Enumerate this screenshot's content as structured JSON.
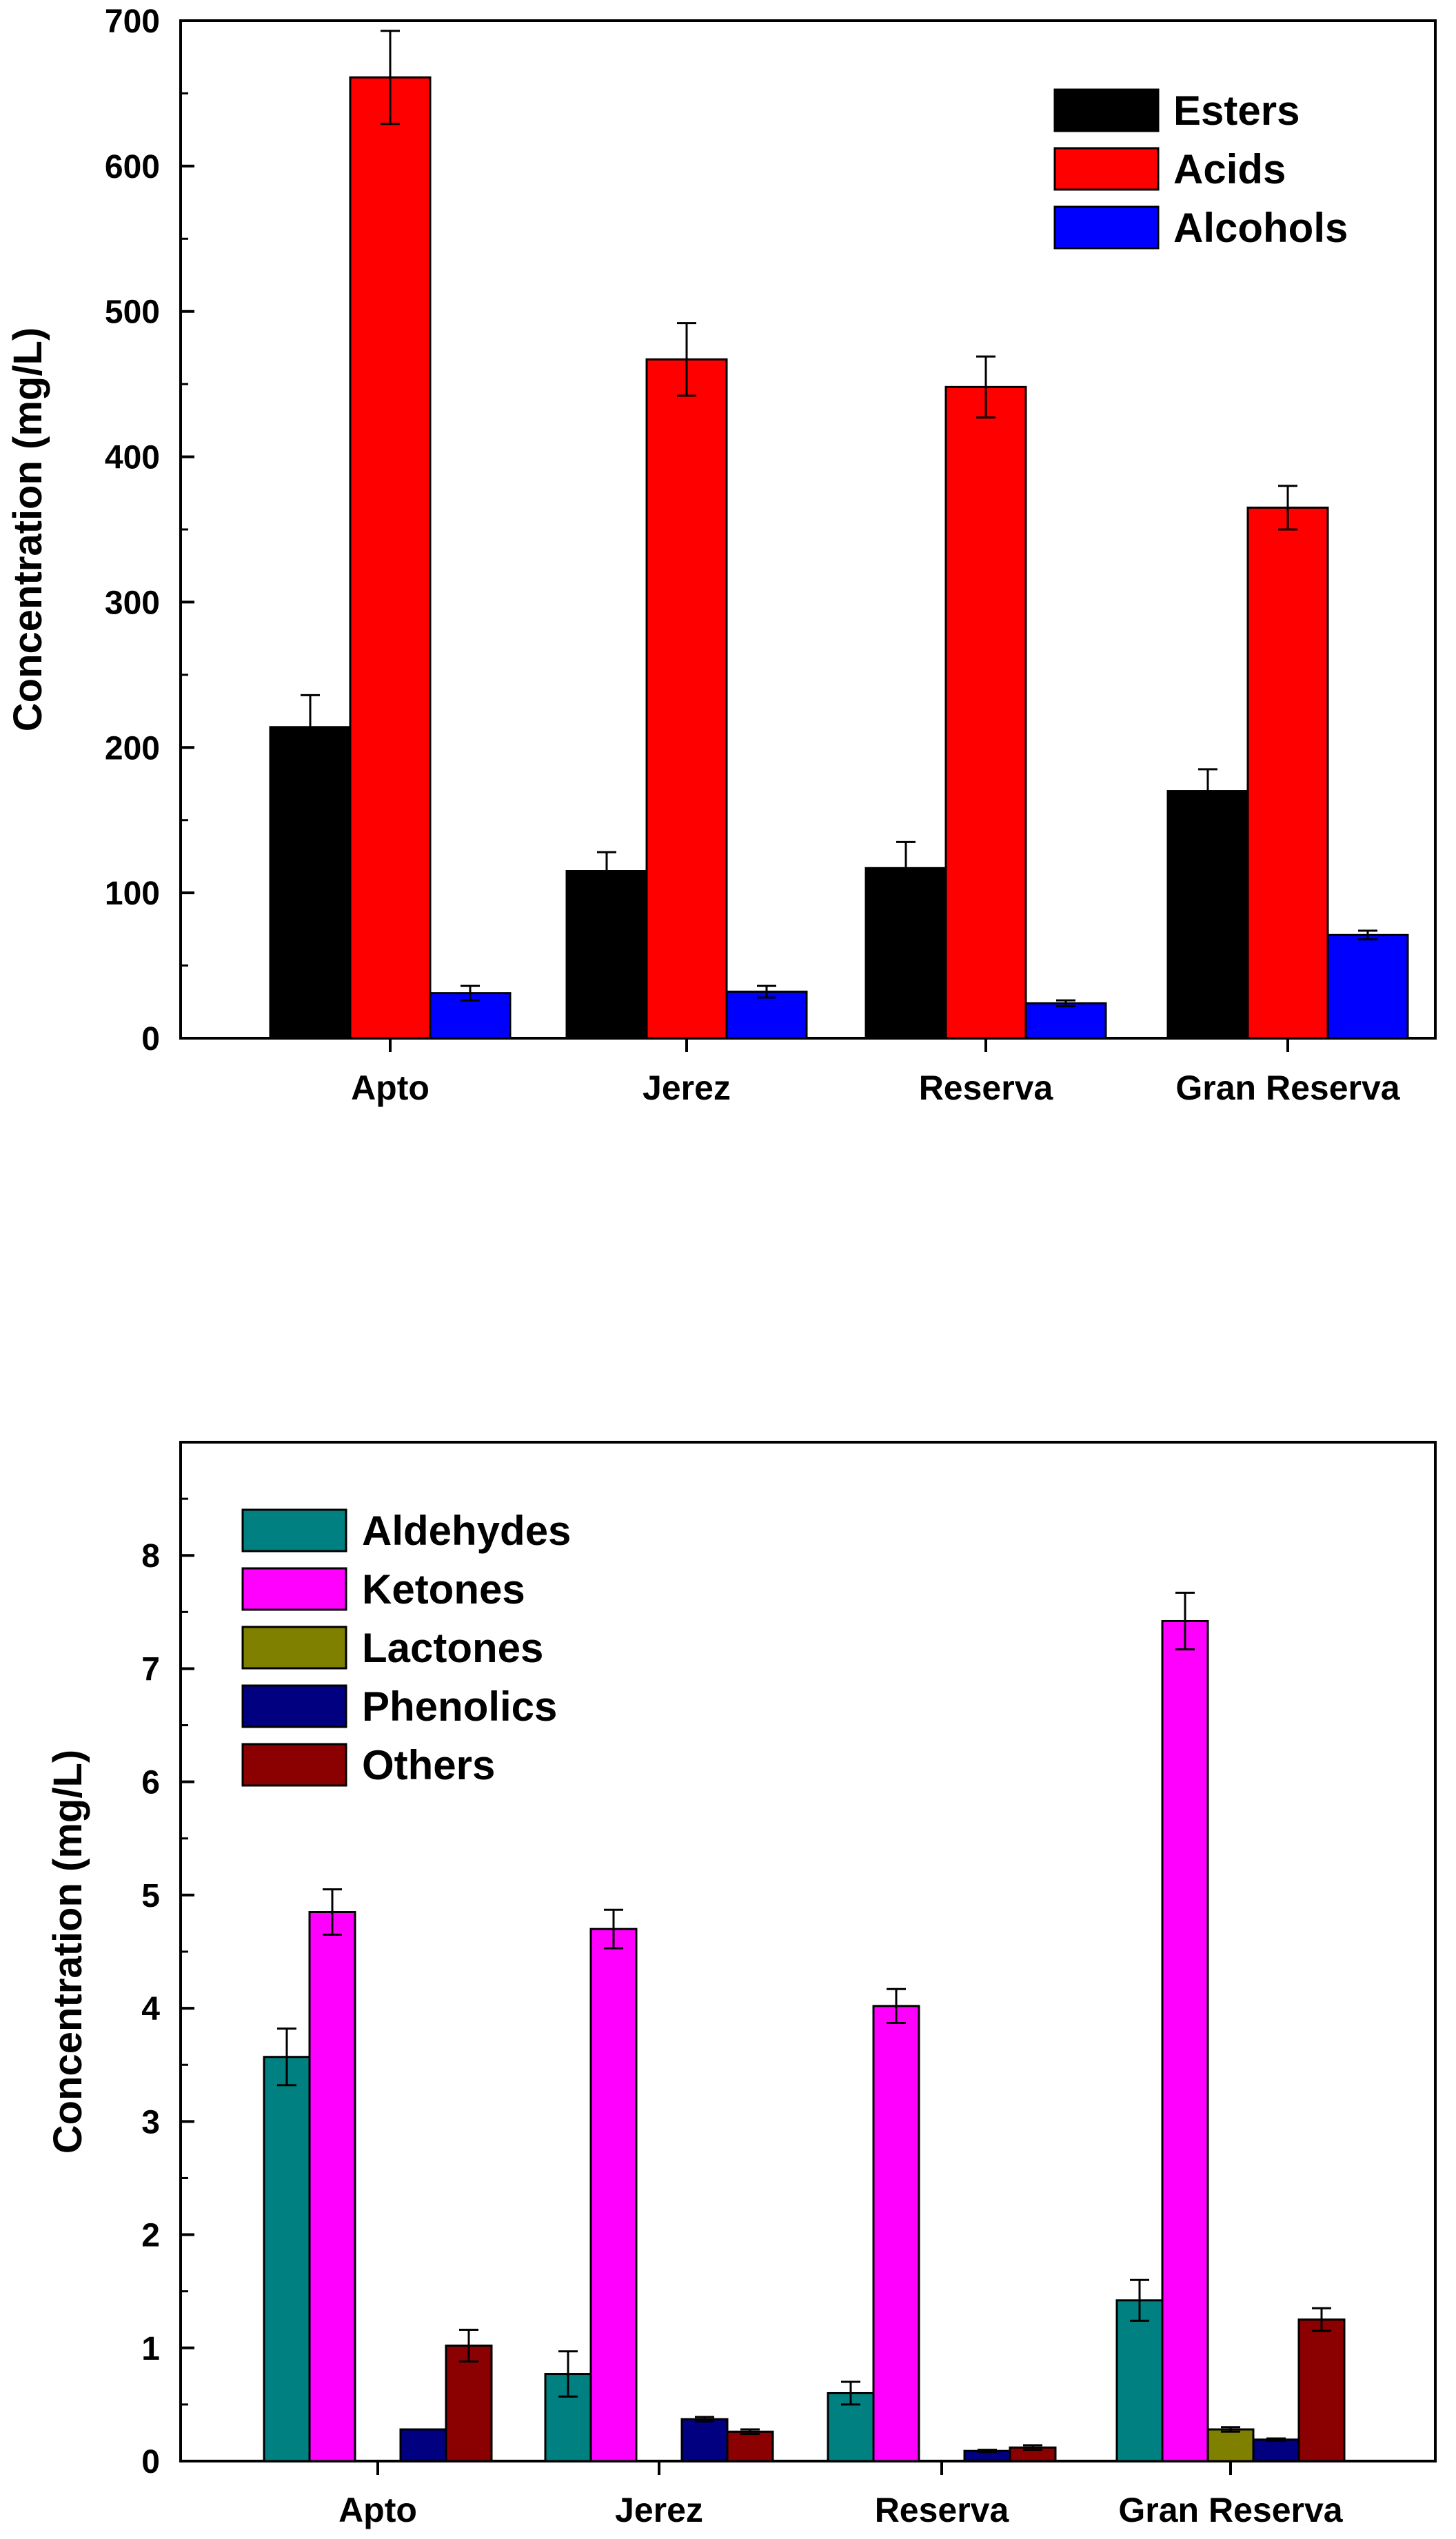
{
  "chart_data": [
    {
      "type": "bar",
      "title": "",
      "xlabel": "",
      "ylabel": "Concentration (mg/L)",
      "ylim": [
        0,
        700
      ],
      "yticks": [
        0,
        100,
        200,
        300,
        400,
        500,
        600,
        700
      ],
      "legend_position": "top-right",
      "categories": [
        "Apto",
        "Jerez",
        "Reserva",
        "Gran Reserva"
      ],
      "series": [
        {
          "name": "Esters",
          "color": "#000000",
          "values": [
            214,
            115,
            117,
            170
          ],
          "errors": [
            22,
            13,
            18,
            15
          ]
        },
        {
          "name": "Acids",
          "color": "#ff0000",
          "values": [
            661,
            467,
            448,
            365
          ],
          "errors": [
            32,
            25,
            21,
            15
          ]
        },
        {
          "name": "Alcohols",
          "color": "#0000ff",
          "values": [
            31,
            32,
            24,
            71
          ],
          "errors": [
            5,
            4,
            2,
            3
          ]
        }
      ]
    },
    {
      "type": "bar",
      "title": "",
      "xlabel": "",
      "ylabel": "Concentration (mg/L)",
      "ylim": [
        0,
        9
      ],
      "yticks": [
        0,
        1,
        2,
        3,
        4,
        5,
        6,
        7,
        8
      ],
      "legend_position": "top-left",
      "categories": [
        "Apto",
        "Jerez",
        "Reserva",
        "Gran Reserva"
      ],
      "series": [
        {
          "name": "Aldehydes",
          "color": "#008080",
          "values": [
            3.57,
            0.77,
            0.6,
            1.42
          ],
          "errors": [
            0.25,
            0.2,
            0.1,
            0.18
          ]
        },
        {
          "name": "Ketones",
          "color": "#ff00ff",
          "values": [
            4.85,
            4.7,
            4.02,
            7.42
          ],
          "errors": [
            0.2,
            0.17,
            0.15,
            0.25
          ]
        },
        {
          "name": "Lactones",
          "color": "#808000",
          "values": [
            0,
            0,
            0,
            0.28
          ],
          "errors": [
            0,
            0,
            0,
            0.02
          ]
        },
        {
          "name": "Phenolics",
          "color": "#000080",
          "values": [
            0.28,
            0.37,
            0.09,
            0.19
          ],
          "errors": [
            0,
            0.02,
            0.01,
            0.01
          ]
        },
        {
          "name": "Others",
          "color": "#8b0000",
          "values": [
            1.02,
            0.26,
            0.12,
            1.25
          ],
          "errors": [
            0.14,
            0.02,
            0.02,
            0.1
          ]
        }
      ]
    }
  ]
}
